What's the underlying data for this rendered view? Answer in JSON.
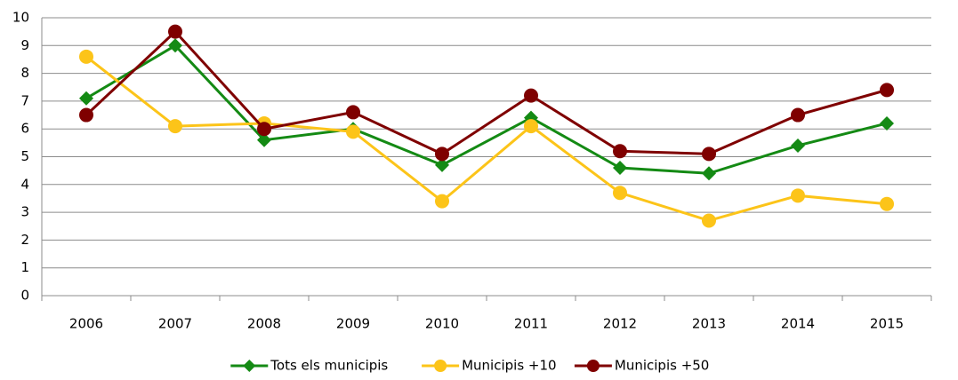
{
  "chart_data": {
    "type": "line",
    "categories": [
      "2006",
      "2007",
      "2008",
      "2009",
      "2010",
      "2011",
      "2012",
      "2013",
      "2014",
      "2015"
    ],
    "series": [
      {
        "name": "Tots els municipis",
        "color": "#148a14",
        "marker": "diamond",
        "values": [
          7.1,
          9.0,
          5.6,
          6.0,
          4.7,
          6.4,
          4.6,
          4.4,
          5.4,
          6.2
        ]
      },
      {
        "name": "Municipis +10",
        "color": "#fcc419",
        "marker": "circle",
        "values": [
          8.6,
          6.1,
          6.2,
          5.9,
          3.4,
          6.1,
          3.7,
          2.7,
          3.6,
          3.3
        ]
      },
      {
        "name": "Municipis +50",
        "color": "#7f0000",
        "marker": "circle",
        "values": [
          6.5,
          9.5,
          6.0,
          6.6,
          5.1,
          7.2,
          5.2,
          5.1,
          6.5,
          7.4
        ]
      }
    ],
    "ylim": [
      0,
      10
    ],
    "yticks": [
      0,
      1,
      2,
      3,
      4,
      5,
      6,
      7,
      8,
      9,
      10
    ],
    "grid": true,
    "legend": "bottom"
  }
}
